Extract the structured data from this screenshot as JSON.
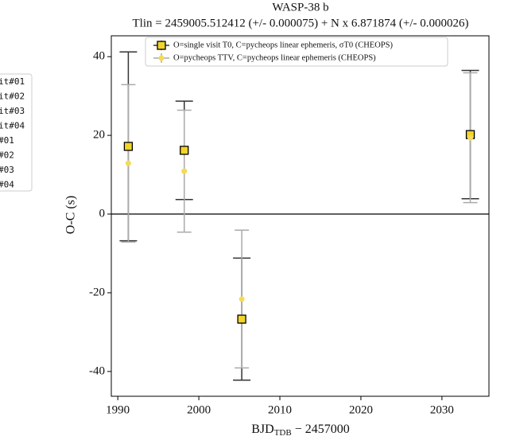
{
  "chart_data": {
    "type": "errorbar",
    "title": "WASP-38 b",
    "subtitle": "Tlin = 2459005.512412 (+/- 0.000075) + N x 6.871874 (+/- 0.000026)",
    "x_label": [
      "BJD",
      "TDB",
      " − 2457000"
    ],
    "y_label": "O-C (s)",
    "x": [
      1991.3,
      1998.2,
      2005.3,
      2033.5
    ],
    "series": [
      {
        "name": "O=single visit T0, C=pycheops linear ephemeris, σT0 (CHEOPS)",
        "marker": "square",
        "color": "#f2d42a",
        "ecolor": "#333333",
        "values": [
          17.2,
          16.2,
          -26.7,
          20.2
        ],
        "errors": [
          24,
          12.5,
          15.5,
          16.3
        ]
      },
      {
        "name": "O=pycheops TTV, C=pycheops linear ephemeris (CHEOPS)",
        "marker": "circle",
        "color": "#f5da55",
        "ecolor": "#aaaaaa",
        "values": [
          12.9,
          10.9,
          -21.6,
          19.4
        ],
        "errors": [
          20,
          15.5,
          17.5,
          16.5
        ]
      }
    ],
    "xlim": [
      1989.2,
      2035.8
    ],
    "ylim": [
      -46.3,
      45.3
    ],
    "xticks": [
      1990,
      2000,
      2010,
      2020,
      2030
    ],
    "yticks": [
      -40,
      -20,
      0,
      20,
      40
    ],
    "hline": 0,
    "legend": "upper center"
  },
  "side_legend": [
    "it#01",
    "it#02",
    "it#03",
    "it#04",
    "#01",
    "#02",
    "#03",
    "#04"
  ]
}
